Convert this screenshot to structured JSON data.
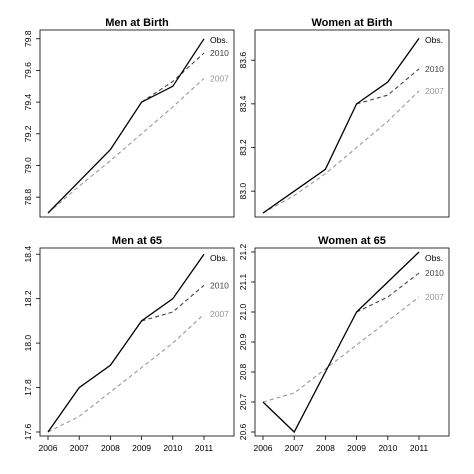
{
  "colors": {
    "obs": "#000000",
    "2010": "#444444",
    "2007": "#999999"
  },
  "chart_data": [
    {
      "type": "line",
      "title": "Men at Birth",
      "x": [
        2006,
        2007,
        2008,
        2009,
        2010,
        2011
      ],
      "ylim": [
        78.7,
        79.83
      ],
      "yticks": [
        78.8,
        79.0,
        79.2,
        79.4,
        79.6,
        79.8
      ],
      "ytick_labels": [
        "78.8",
        "79.0",
        "79.2",
        "79.4",
        "79.6",
        "79.8"
      ],
      "show_xticks": false,
      "series": [
        {
          "name": "Obs.",
          "key": "obs",
          "values": [
            78.7,
            78.9,
            79.1,
            79.4,
            79.5,
            79.8
          ]
        },
        {
          "name": "2010",
          "key": "2010",
          "values": [
            null,
            null,
            null,
            79.4,
            79.53,
            79.71
          ]
        },
        {
          "name": "2007",
          "key": "2007",
          "values": [
            78.7,
            78.87,
            79.03,
            79.2,
            79.37,
            79.55
          ]
        }
      ]
    },
    {
      "type": "line",
      "title": "Women at Birth",
      "x": [
        2006,
        2007,
        2008,
        2009,
        2010,
        2011
      ],
      "ylim": [
        82.9,
        83.72
      ],
      "yticks": [
        83.0,
        83.2,
        83.4,
        83.6
      ],
      "ytick_labels": [
        "83.0",
        "83.2",
        "83.4",
        "83.6"
      ],
      "show_xticks": false,
      "series": [
        {
          "name": "Obs.",
          "key": "obs",
          "values": [
            82.9,
            83.0,
            83.1,
            83.4,
            83.5,
            83.7
          ]
        },
        {
          "name": "2010",
          "key": "2010",
          "values": [
            null,
            null,
            null,
            83.4,
            83.44,
            83.56
          ]
        },
        {
          "name": "2007",
          "key": "2007",
          "values": [
            82.9,
            82.98,
            83.08,
            83.2,
            83.32,
            83.46
          ]
        }
      ]
    },
    {
      "type": "line",
      "title": "Men at 65",
      "x": [
        2006,
        2007,
        2008,
        2009,
        2010,
        2011
      ],
      "ylim": [
        17.6,
        18.41
      ],
      "yticks": [
        17.6,
        17.8,
        18.0,
        18.2,
        18.4
      ],
      "ytick_labels": [
        "17.6",
        "17.8",
        "18.0",
        "18.2",
        "18.4"
      ],
      "show_xticks": true,
      "series": [
        {
          "name": "Obs.",
          "key": "obs",
          "values": [
            17.6,
            17.8,
            17.9,
            18.1,
            18.2,
            18.4
          ]
        },
        {
          "name": "2010",
          "key": "2010",
          "values": [
            null,
            null,
            null,
            18.1,
            18.14,
            18.26
          ]
        },
        {
          "name": "2007",
          "key": "2007",
          "values": [
            17.6,
            17.67,
            17.78,
            17.89,
            18.0,
            18.13
          ]
        }
      ]
    },
    {
      "type": "line",
      "title": "Women at 65",
      "x": [
        2006,
        2007,
        2008,
        2009,
        2010,
        2011
      ],
      "ylim": [
        20.6,
        21.2
      ],
      "yticks": [
        20.6,
        20.7,
        20.8,
        20.9,
        21.0,
        21.1,
        21.2
      ],
      "ytick_labels": [
        "20.6",
        "20.7",
        "20.8",
        "20.9",
        "21.0",
        "21.1",
        "21.2"
      ],
      "show_xticks": true,
      "series": [
        {
          "name": "Obs.",
          "key": "obs",
          "values": [
            20.7,
            20.6,
            20.8,
            21.0,
            21.1,
            21.2
          ]
        },
        {
          "name": "2010",
          "key": "2010",
          "values": [
            null,
            null,
            null,
            21.0,
            21.05,
            21.13
          ]
        },
        {
          "name": "2007",
          "key": "2007",
          "values": [
            20.7,
            20.73,
            20.81,
            20.89,
            20.97,
            21.05
          ]
        }
      ]
    }
  ],
  "x_tick_labels": [
    "2006",
    "2007",
    "2008",
    "2009",
    "2010",
    "2011"
  ]
}
